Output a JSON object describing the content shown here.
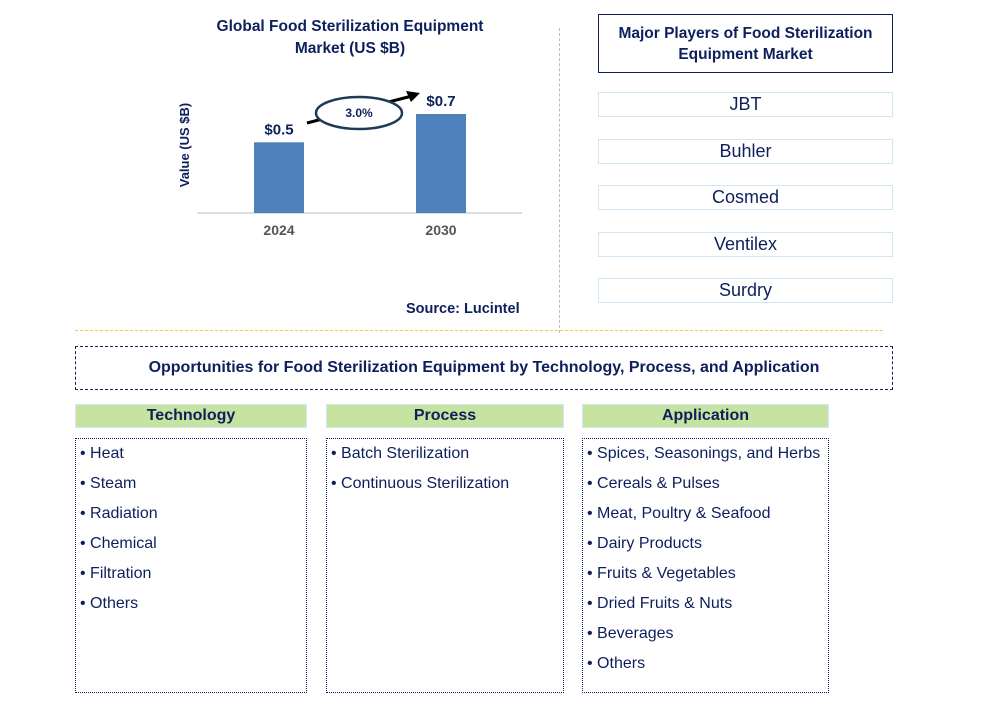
{
  "chart_data": {
    "type": "bar",
    "title": "Global Food Sterilization Equipment Market (US $B)",
    "ylabel": "Value (US $B)",
    "xlabel": "",
    "categories": [
      "2024",
      "2030"
    ],
    "values": [
      0.5,
      0.7
    ],
    "data_labels": [
      "$0.5",
      "$0.7"
    ],
    "ylim": [
      0,
      0.7
    ],
    "annotation": "3.0%",
    "bar_color": "#4f81bd",
    "grid": false
  },
  "source": "Source: Lucintel",
  "players": {
    "title": "Major Players of Food Sterilization Equipment Market",
    "items": [
      "JBT",
      "Buhler",
      "Cosmed",
      "Ventilex",
      "Surdry"
    ]
  },
  "opportunities": {
    "title": "Opportunities for Food Sterilization Equipment by Technology, Process, and Application",
    "columns": [
      {
        "header": "Technology",
        "items": [
          "• Heat",
          "• Steam",
          "• Radiation",
          "• Chemical",
          "• Filtration",
          "• Others"
        ]
      },
      {
        "header": "Process",
        "items": [
          "• Batch Sterilization",
          "• Continuous Sterilization"
        ]
      },
      {
        "header": "Application",
        "items": [
          "• Spices, Seasonings, and Herbs",
          "• Cereals & Pulses",
          "• Meat, Poultry & Seafood",
          "• Dairy Products",
          "• Fruits & Vegetables",
          "• Dried Fruits & Nuts",
          "• Beverages",
          "• Others"
        ]
      }
    ]
  }
}
